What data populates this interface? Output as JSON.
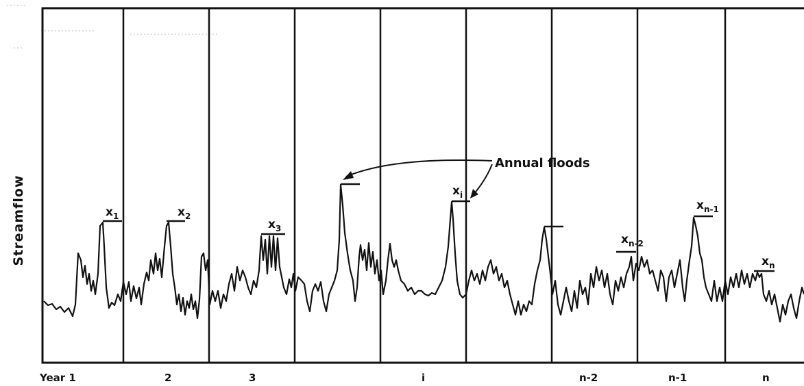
{
  "figure": {
    "ylabel": "Streamflow",
    "annotation": "Annual floods",
    "year_labels": [
      {
        "key": "y1",
        "text": "Year 1"
      },
      {
        "key": "y2",
        "text": "2"
      },
      {
        "key": "y3",
        "text": "3"
      },
      {
        "key": "yi",
        "text": "i"
      },
      {
        "key": "yn2",
        "text": "n-2"
      },
      {
        "key": "yn1",
        "text": "n-1"
      },
      {
        "key": "yn",
        "text": "n"
      }
    ],
    "peak_labels": [
      {
        "key": "x1",
        "base": "x",
        "sub": "1"
      },
      {
        "key": "x2",
        "base": "x",
        "sub": "2"
      },
      {
        "key": "x3",
        "base": "x",
        "sub": "3"
      },
      {
        "key": "xi",
        "base": "x",
        "sub": "i"
      },
      {
        "key": "xn2",
        "base": "x",
        "sub": "n-2"
      },
      {
        "key": "xn1",
        "base": "x",
        "sub": "n-1"
      },
      {
        "key": "xn",
        "base": "x",
        "sub": "n"
      }
    ]
  },
  "colors": {
    "ink": "#111111",
    "background": "#ffffff"
  }
}
